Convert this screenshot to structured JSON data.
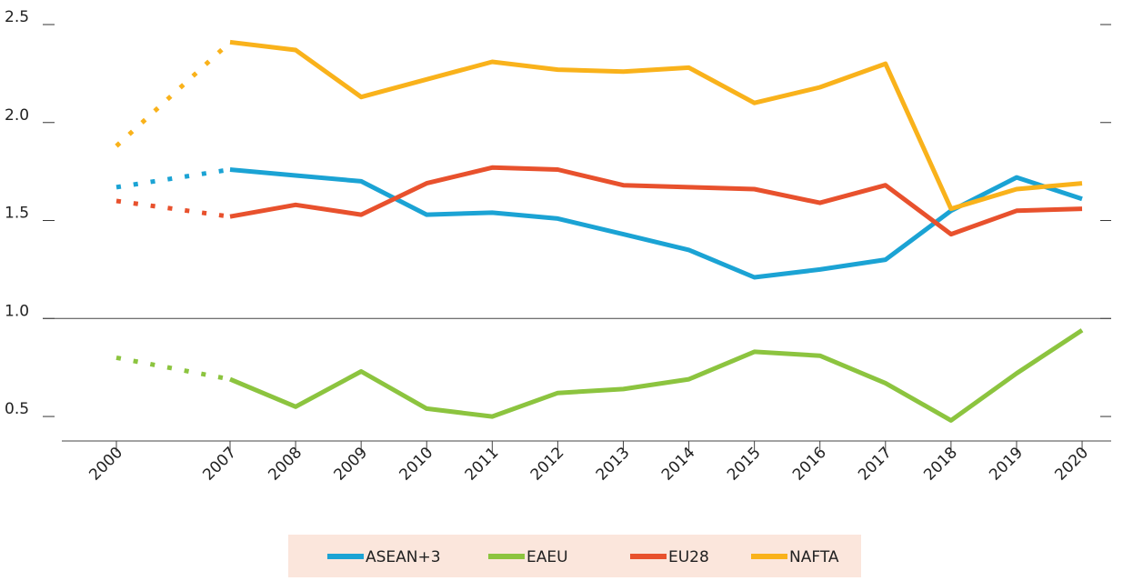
{
  "chart_data": {
    "type": "line",
    "categories": [
      "2000",
      "2007",
      "2008",
      "2009",
      "2010",
      "2011",
      "2012",
      "2013",
      "2014",
      "2015",
      "2016",
      "2017",
      "2018",
      "2019",
      "2020"
    ],
    "series": [
      {
        "name": "ASEAN+3",
        "color": "#1ba3d4",
        "values": [
          1.67,
          1.76,
          1.73,
          1.7,
          1.53,
          1.54,
          1.51,
          1.43,
          1.35,
          1.21,
          1.25,
          1.3,
          1.55,
          1.72,
          1.61
        ]
      },
      {
        "name": "EAEU",
        "color": "#8cc43f",
        "values": [
          0.8,
          0.69,
          0.55,
          0.73,
          0.54,
          0.5,
          0.62,
          0.64,
          0.69,
          0.83,
          0.81,
          0.67,
          0.48,
          0.72,
          0.94
        ]
      },
      {
        "name": "EU28",
        "color": "#e8512d",
        "values": [
          1.6,
          1.52,
          1.58,
          1.53,
          1.69,
          1.77,
          1.76,
          1.68,
          1.67,
          1.66,
          1.59,
          1.68,
          1.43,
          1.55,
          1.56
        ]
      },
      {
        "name": "NAFTA",
        "color": "#f9b21b",
        "values": [
          1.88,
          2.41,
          2.37,
          2.13,
          2.22,
          2.31,
          2.27,
          2.26,
          2.28,
          2.1,
          2.18,
          2.3,
          1.56,
          1.66,
          1.69
        ]
      }
    ],
    "ylim": [
      0.375,
      2.5
    ],
    "yticks": [
      {
        "value": 0.5,
        "label": "0.5"
      },
      {
        "value": 1,
        "label": "1.0"
      },
      {
        "value": 1.5,
        "label": "1.5"
      },
      {
        "value": 2,
        "label": "2.0"
      },
      {
        "value": 2.5,
        "label": "2.5"
      }
    ],
    "reference_line": 1,
    "legend": "bottom"
  }
}
